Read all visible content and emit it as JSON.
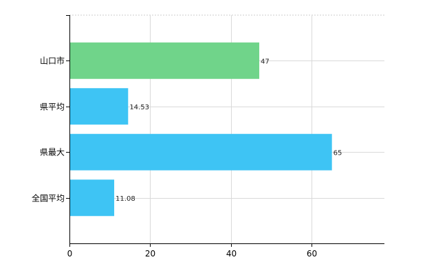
{
  "chart_data": {
    "type": "bar",
    "orientation": "horizontal",
    "categories": [
      "山口市",
      "県平均",
      "県最大",
      "全国平均"
    ],
    "values": [
      47,
      14.53,
      65,
      11.08
    ],
    "value_labels": [
      "47",
      "14.53",
      "65",
      "11.08"
    ],
    "bar_colors": [
      "#70d48a",
      "#3ec4f4",
      "#3ec4f4",
      "#3ec4f4"
    ],
    "xlim": [
      0,
      78
    ],
    "x_ticks": [
      0,
      20,
      40,
      60
    ],
    "x_tick_labels": [
      "0",
      "20",
      "40",
      "60"
    ],
    "grid": true,
    "legend": "none",
    "title": "",
    "xlabel": "",
    "ylabel": ""
  }
}
